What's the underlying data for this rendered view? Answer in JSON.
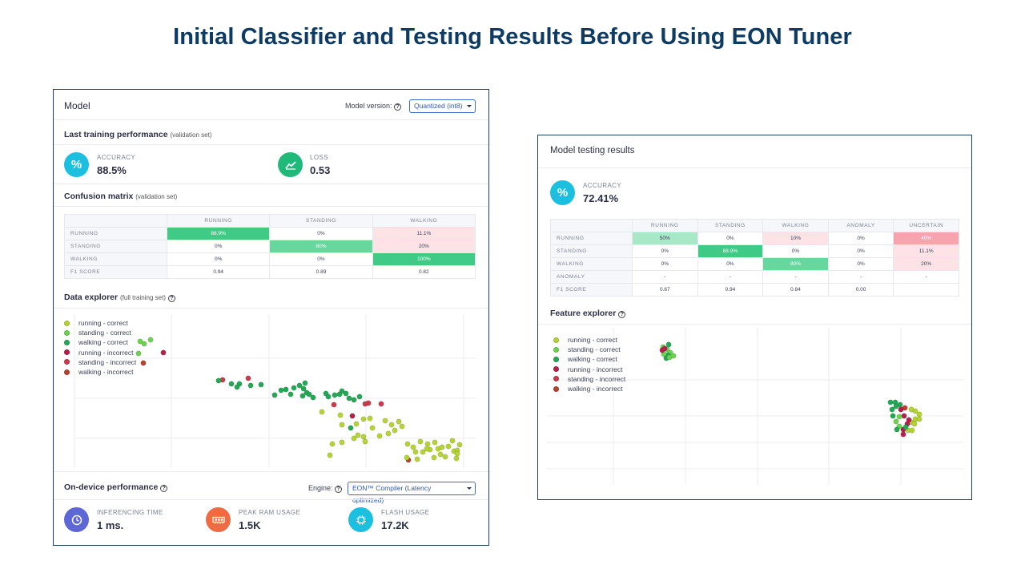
{
  "slide_title": "Initial Classifier and Testing Results Before Using EON Tuner",
  "colors": {
    "running_correct": "#b5d334",
    "standing_correct": "#6dd24f",
    "walking_correct": "#23a956",
    "running_incorrect": "#b5204a",
    "standing_incorrect": "#cc3b4b",
    "walking_incorrect": "#b8422e",
    "accent_cyan": "#1bbfe0",
    "accent_green": "#1fb97a",
    "accent_indigo": "#5d67d6",
    "accent_orange": "#f06a43"
  },
  "left": {
    "title": "Model",
    "model_version_label": "Model version:",
    "model_version_value": "Quantized (int8)",
    "training_heading": "Last training performance",
    "training_sub": "(validation set)",
    "accuracy": {
      "icon": "percent-icon",
      "label": "ACCURACY",
      "value": "88.5%"
    },
    "loss": {
      "icon": "chart-line-icon",
      "label": "LOSS",
      "value": "0.53"
    },
    "cm_heading": "Confusion matrix",
    "cm_sub": "(validation set)",
    "cm": {
      "columns": [
        "RUNNING",
        "STANDING",
        "WALKING"
      ],
      "rows": [
        {
          "label": "RUNNING",
          "cells": [
            "88.9%",
            "0%",
            "11.1%"
          ]
        },
        {
          "label": "STANDING",
          "cells": [
            "0%",
            "80%",
            "20%"
          ]
        },
        {
          "label": "WALKING",
          "cells": [
            "0%",
            "0%",
            "100%"
          ]
        }
      ],
      "f1": {
        "label": "F1 SCORE",
        "cells": [
          "0.94",
          "0.89",
          "0.82"
        ]
      }
    },
    "explorer_heading": "Data explorer",
    "explorer_sub": "(full training set)",
    "legend": [
      "running - correct",
      "standing - correct",
      "walking - correct",
      "running - incorrect",
      "standing - incorrect",
      "walking - incorrect"
    ],
    "ondevice_heading": "On-device performance",
    "engine_label": "Engine:",
    "engine_value": "EON™ Compiler (Latency optimized)",
    "inferencing": {
      "icon": "clock-icon",
      "label": "INFERENCING TIME",
      "value": "1 ms."
    },
    "ram": {
      "icon": "memory-icon",
      "label": "PEAK RAM USAGE",
      "value": "1.5K"
    },
    "flash": {
      "icon": "chip-icon",
      "label": "FLASH USAGE",
      "value": "17.2K"
    }
  },
  "right": {
    "title": "Model testing results",
    "accuracy": {
      "icon": "percent-icon",
      "label": "ACCURACY",
      "value": "72.41%"
    },
    "cm": {
      "columns": [
        "RUNNING",
        "STANDING",
        "WALKING",
        "ANOMALY",
        "UNCERTAIN"
      ],
      "rows": [
        {
          "label": "RUNNING",
          "cells": [
            "50%",
            "0%",
            "10%",
            "0%",
            "40%"
          ]
        },
        {
          "label": "STANDING",
          "cells": [
            "0%",
            "88.9%",
            "0%",
            "0%",
            "11.1%"
          ]
        },
        {
          "label": "WALKING",
          "cells": [
            "0%",
            "0%",
            "80%",
            "0%",
            "20%"
          ]
        },
        {
          "label": "ANOMALY",
          "cells": [
            "-",
            "-",
            "-",
            "-",
            "-"
          ]
        }
      ],
      "f1": {
        "label": "F1 SCORE",
        "cells": [
          "0.67",
          "0.94",
          "0.84",
          "0.00",
          ""
        ]
      }
    },
    "explorer_heading": "Feature explorer",
    "legend": [
      "running - correct",
      "standing - correct",
      "walking - correct",
      "running - incorrect",
      "standing - incorrect",
      "walking - incorrect"
    ]
  }
}
